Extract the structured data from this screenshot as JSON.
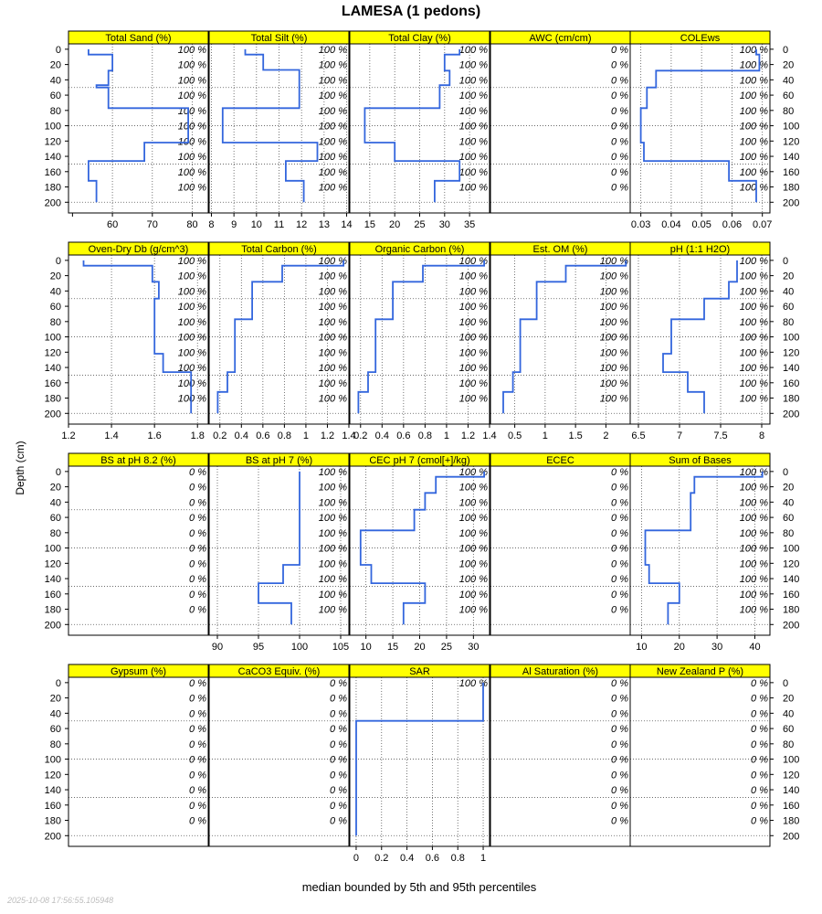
{
  "figure": {
    "title": "LAMESA (1 pedons)",
    "y_axis_label": "Depth (cm)",
    "x_axis_label": "median bounded by 5th and 95th percentiles",
    "timestamp": "2025-10-08 17:56:55.105948",
    "colors": {
      "strip": "#ffff00",
      "line": "#3366dd",
      "grid": "#555555"
    }
  },
  "chart_data": {
    "type": "line",
    "layout": "4 rows x 5 columns of depth-profile panels",
    "y_axis": {
      "label": "Depth (cm)",
      "range": [
        -7,
        214
      ],
      "reversed": true,
      "ticks": [
        0,
        20,
        40,
        60,
        80,
        100,
        120,
        140,
        160,
        180,
        200
      ]
    },
    "x_axis_label": "median bounded by 5th and 95th percentiles",
    "grid": "dotted",
    "panels": [
      {
        "name": "Total Sand (%)",
        "xlim": [
          49,
          84
        ],
        "xticks": [
          60,
          70,
          80
        ],
        "outer_ticks": [
          50
        ],
        "annotation": "100 %",
        "series": [
          [
            54,
            0
          ],
          [
            54,
            7
          ],
          [
            60,
            7
          ],
          [
            60,
            28
          ],
          [
            59,
            28
          ],
          [
            59,
            47
          ],
          [
            56,
            47
          ],
          [
            56,
            50
          ],
          [
            59,
            50
          ],
          [
            59,
            77
          ],
          [
            79,
            77
          ],
          [
            79,
            122
          ],
          [
            68,
            122
          ],
          [
            68,
            146
          ],
          [
            54,
            146
          ],
          [
            54,
            172
          ],
          [
            56,
            172
          ],
          [
            56,
            200
          ]
        ]
      },
      {
        "name": "Total Silt (%)",
        "xlim": [
          7.9,
          14.1
        ],
        "xticks": [
          8,
          9,
          10,
          11,
          12,
          13,
          14
        ],
        "annotation": "100 %",
        "series": [
          [
            9.5,
            0
          ],
          [
            9.5,
            7
          ],
          [
            10.3,
            7
          ],
          [
            10.3,
            27
          ],
          [
            11.9,
            27
          ],
          [
            11.9,
            77
          ],
          [
            8.5,
            77
          ],
          [
            8.5,
            122
          ],
          [
            12.7,
            122
          ],
          [
            12.7,
            146
          ],
          [
            11.3,
            146
          ],
          [
            11.3,
            172
          ],
          [
            12.1,
            172
          ],
          [
            12.1,
            200
          ]
        ]
      },
      {
        "name": "Total Clay (%)",
        "xlim": [
          11,
          39
        ],
        "xticks": [
          15,
          20,
          25,
          30,
          35
        ],
        "annotation": "100 %",
        "series": [
          [
            33,
            0
          ],
          [
            33,
            7
          ],
          [
            30,
            7
          ],
          [
            30,
            28
          ],
          [
            31,
            28
          ],
          [
            31,
            47
          ],
          [
            29,
            47
          ],
          [
            29,
            77
          ],
          [
            14,
            77
          ],
          [
            14,
            122
          ],
          [
            20,
            122
          ],
          [
            20,
            146
          ],
          [
            33,
            146
          ],
          [
            33,
            172
          ],
          [
            28,
            172
          ],
          [
            28,
            200
          ]
        ]
      },
      {
        "name": "AWC (cm/cm)",
        "xlim": [
          0,
          1
        ],
        "xticks": [],
        "annotation": "0 %",
        "series": []
      },
      {
        "name": "COLEws",
        "xlim": [
          0.0265,
          0.0725
        ],
        "xticks": [
          0.03,
          0.04,
          0.05,
          0.06,
          0.07
        ],
        "annotation": "100 %",
        "series": [
          [
            0.068,
            0
          ],
          [
            0.068,
            7
          ],
          [
            0.069,
            7
          ],
          [
            0.069,
            28
          ],
          [
            0.035,
            28
          ],
          [
            0.035,
            50
          ],
          [
            0.032,
            50
          ],
          [
            0.032,
            77
          ],
          [
            0.03,
            77
          ],
          [
            0.03,
            122
          ],
          [
            0.031,
            122
          ],
          [
            0.031,
            146
          ],
          [
            0.059,
            146
          ],
          [
            0.059,
            172
          ],
          [
            0.068,
            172
          ],
          [
            0.068,
            200
          ]
        ]
      },
      {
        "name": "Oven-Dry Db (g/cm^3)",
        "xlim": [
          1.2,
          1.85
        ],
        "xticks": [
          1.2,
          1.4,
          1.6,
          1.8
        ],
        "annotation": "100 %",
        "series": [
          [
            1.27,
            0
          ],
          [
            1.27,
            7
          ],
          [
            1.59,
            7
          ],
          [
            1.59,
            28
          ],
          [
            1.62,
            28
          ],
          [
            1.62,
            50
          ],
          [
            1.6,
            50
          ],
          [
            1.6,
            122
          ],
          [
            1.64,
            122
          ],
          [
            1.64,
            146
          ],
          [
            1.77,
            146
          ],
          [
            1.77,
            200
          ]
        ]
      },
      {
        "name": "Total Carbon (%)",
        "xlim": [
          0.1,
          1.4
        ],
        "xticks": [
          0.2,
          0.4,
          0.6,
          0.8,
          1.0,
          1.2,
          1.4
        ],
        "annotation": "100 %",
        "series": [
          [
            1.35,
            0
          ],
          [
            1.35,
            7
          ],
          [
            0.78,
            7
          ],
          [
            0.78,
            28
          ],
          [
            0.5,
            28
          ],
          [
            0.5,
            77
          ],
          [
            0.34,
            77
          ],
          [
            0.34,
            146
          ],
          [
            0.27,
            146
          ],
          [
            0.27,
            172
          ],
          [
            0.18,
            172
          ],
          [
            0.18,
            200
          ]
        ]
      },
      {
        "name": "Organic Carbon (%)",
        "xlim": [
          0.1,
          1.4
        ],
        "xticks": [
          0.2,
          0.4,
          0.6,
          0.8,
          1.0,
          1.2,
          1.4
        ],
        "annotation": "100 %",
        "series": [
          [
            1.35,
            0
          ],
          [
            1.35,
            7
          ],
          [
            0.78,
            7
          ],
          [
            0.78,
            28
          ],
          [
            0.5,
            28
          ],
          [
            0.5,
            77
          ],
          [
            0.34,
            77
          ],
          [
            0.34,
            146
          ],
          [
            0.27,
            146
          ],
          [
            0.27,
            172
          ],
          [
            0.18,
            172
          ],
          [
            0.18,
            200
          ]
        ]
      },
      {
        "name": "Est. OM (%)",
        "xlim": [
          0.1,
          2.4
        ],
        "xticks": [
          0.5,
          1.0,
          1.5,
          2.0
        ],
        "annotation": "100 %",
        "series": [
          [
            2.33,
            0
          ],
          [
            2.33,
            7
          ],
          [
            1.34,
            7
          ],
          [
            1.34,
            28
          ],
          [
            0.86,
            28
          ],
          [
            0.86,
            77
          ],
          [
            0.59,
            77
          ],
          [
            0.59,
            146
          ],
          [
            0.47,
            146
          ],
          [
            0.47,
            172
          ],
          [
            0.31,
            172
          ],
          [
            0.31,
            200
          ]
        ]
      },
      {
        "name": "pH (1:1 H2O)",
        "xlim": [
          6.4,
          8.1
        ],
        "xticks": [
          6.5,
          7.0,
          7.5,
          8.0
        ],
        "annotation": "100 %",
        "series": [
          [
            7.7,
            0
          ],
          [
            7.7,
            28
          ],
          [
            7.6,
            28
          ],
          [
            7.6,
            50
          ],
          [
            7.3,
            50
          ],
          [
            7.3,
            77
          ],
          [
            6.9,
            77
          ],
          [
            6.9,
            122
          ],
          [
            6.8,
            122
          ],
          [
            6.8,
            146
          ],
          [
            7.1,
            146
          ],
          [
            7.1,
            172
          ],
          [
            7.3,
            172
          ],
          [
            7.3,
            200
          ]
        ]
      },
      {
        "name": "BS at pH 8.2 (%)",
        "xlim": [
          0,
          1
        ],
        "xticks": [],
        "annotation": "0 %",
        "series": []
      },
      {
        "name": "BS at pH 7 (%)",
        "xlim": [
          89,
          106
        ],
        "xticks": [
          90,
          95,
          100,
          105
        ],
        "annotation": "100 %",
        "series": [
          [
            100,
            0
          ],
          [
            100,
            122
          ],
          [
            98,
            122
          ],
          [
            98,
            146
          ],
          [
            95,
            146
          ],
          [
            95,
            172
          ],
          [
            99,
            172
          ],
          [
            99,
            200
          ]
        ]
      },
      {
        "name": "CEC pH 7 (cmol[+]/kg)",
        "xlim": [
          7,
          33
        ],
        "xticks": [
          10,
          15,
          20,
          25,
          30
        ],
        "annotation": "100 %",
        "series": [
          [
            32,
            0
          ],
          [
            32,
            7
          ],
          [
            23,
            7
          ],
          [
            23,
            28
          ],
          [
            21,
            28
          ],
          [
            21,
            50
          ],
          [
            19,
            50
          ],
          [
            19,
            77
          ],
          [
            9,
            77
          ],
          [
            9,
            122
          ],
          [
            11,
            122
          ],
          [
            11,
            146
          ],
          [
            21,
            146
          ],
          [
            21,
            172
          ],
          [
            17,
            172
          ],
          [
            17,
            200
          ]
        ]
      },
      {
        "name": "ECEC",
        "xlim": [
          0,
          1
        ],
        "xticks": [],
        "annotation": "0 %",
        "series": []
      },
      {
        "name": "Sum of Bases",
        "xlim": [
          7,
          44
        ],
        "xticks": [
          10,
          20,
          30,
          40
        ],
        "annotation": "100 %",
        "series": [
          [
            42,
            0
          ],
          [
            42,
            7
          ],
          [
            24,
            7
          ],
          [
            24,
            28
          ],
          [
            23,
            28
          ],
          [
            23,
            50
          ],
          [
            23,
            50
          ],
          [
            23,
            77
          ],
          [
            11,
            77
          ],
          [
            11,
            122
          ],
          [
            12,
            122
          ],
          [
            12,
            146
          ],
          [
            20,
            146
          ],
          [
            20,
            172
          ],
          [
            17,
            172
          ],
          [
            17,
            200
          ]
        ]
      },
      {
        "name": "Gypsum (%)",
        "xlim": [
          0,
          1
        ],
        "xticks": [],
        "annotation": "0 %",
        "series": []
      },
      {
        "name": "CaCO3 Equiv. (%)",
        "xlim": [
          0,
          1
        ],
        "xticks": [],
        "annotation": "0 %",
        "series": []
      },
      {
        "name": "SAR",
        "xlim": [
          -0.05,
          1.05
        ],
        "xticks": [
          0.0,
          0.2,
          0.4,
          0.6,
          0.8,
          1.0
        ],
        "annotation": "100 %",
        "annotation_at": [
          0
        ],
        "series": [
          [
            1,
            0
          ],
          [
            1,
            50
          ],
          [
            0,
            50
          ],
          [
            0,
            200
          ]
        ]
      },
      {
        "name": "Al Saturation (%)",
        "xlim": [
          0,
          1
        ],
        "xticks": [],
        "annotation": "0 %",
        "series": []
      },
      {
        "name": "New Zealand P (%)",
        "xlim": [
          0,
          1
        ],
        "xticks": [],
        "annotation": "0 %",
        "series": []
      }
    ]
  }
}
